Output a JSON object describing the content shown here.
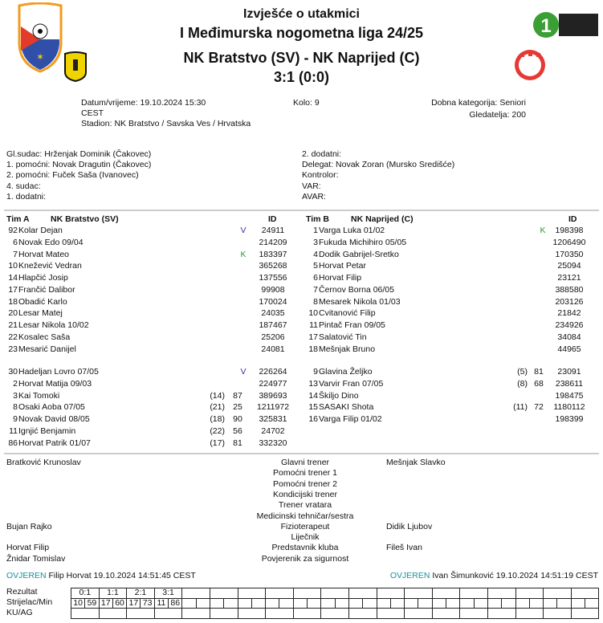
{
  "header": {
    "title": "Izvješće o utakmici",
    "league": "I Međimurska nogometna liga 24/25",
    "match": "NK Bratstvo (SV) - NK Naprijed (C)",
    "score": "3:1 (0:0)",
    "logos": {
      "federation": "Međimurski nogometni savez 1959",
      "league": "1 Međimurska nogometna liga",
      "home": "NK Bratstvo",
      "away": "NK Naprijed"
    }
  },
  "info": {
    "datetime": "Datum/vrijeme: 19.10.2024 15:30",
    "timezone": "CEST",
    "stadium": "Stadion: NK Bratstvo / Savska Ves / Hrvatska",
    "round": "Kolo: 9",
    "category": "Dobna kategorija: Seniori",
    "attendance": "Gledatelja: 200"
  },
  "officials": {
    "left": [
      "Gl.sudac: Hrženjak Dominik (Čakovec)",
      "1. pomoćni: Novak Dragutin (Čakovec)",
      "2. pomoćni: Fuček Saša (Ivanovec)",
      "4. sudac:",
      "1. dodatni:"
    ],
    "right": [
      "2. dodatni:",
      "Delegat: Novak Zoran (Mursko Središće)",
      "Kontrolor:",
      "VAR:",
      "AVAR:"
    ]
  },
  "teamA": {
    "label": "Tim A",
    "name": "NK Bratstvo (SV)",
    "id_header": "ID",
    "starters": [
      {
        "no": "92",
        "name": "Kolar Dejan",
        "mark": "V",
        "id": "24911"
      },
      {
        "no": "6",
        "name": "Novak Edo 09/04",
        "id": "214209"
      },
      {
        "no": "7",
        "name": "Horvat Mateo",
        "mark": "K",
        "id": "183397"
      },
      {
        "no": "10",
        "name": "Knežević Vedran",
        "id": "365268"
      },
      {
        "no": "14",
        "name": "Hlapčić Josip",
        "id": "137556"
      },
      {
        "no": "17",
        "name": "Frančić Dalibor",
        "id": "99908"
      },
      {
        "no": "18",
        "name": "Obadić Karlo",
        "id": "170024"
      },
      {
        "no": "20",
        "name": "Lesar Matej",
        "id": "24035"
      },
      {
        "no": "21",
        "name": "Lesar Nikola 10/02",
        "id": "187467"
      },
      {
        "no": "22",
        "name": "Kosalec Saša",
        "id": "25206"
      },
      {
        "no": "23",
        "name": "Mesarić Danijel",
        "id": "24081"
      }
    ],
    "subs": [
      {
        "no": "30",
        "name": "Hadeljan Lovro 07/05",
        "mark": "V",
        "id": "226264"
      },
      {
        "no": "2",
        "name": "Horvat Matija 09/03",
        "id": "224977"
      },
      {
        "no": "3",
        "name": "Kai Tomoki",
        "replaced": "(14)",
        "minute": "87",
        "id": "389693"
      },
      {
        "no": "8",
        "name": "Osaki Aoba 07/05",
        "replaced": "(21)",
        "minute": "25",
        "id": "1211972"
      },
      {
        "no": "9",
        "name": "Novak David 08/05",
        "replaced": "(18)",
        "minute": "90",
        "id": "325831"
      },
      {
        "no": "11",
        "name": "Ignjić Benjamin",
        "replaced": "(22)",
        "minute": "56",
        "id": "24702"
      },
      {
        "no": "86",
        "name": "Horvat Patrik 01/07",
        "replaced": "(17)",
        "minute": "81",
        "id": "332320"
      }
    ]
  },
  "teamB": {
    "label": "Tim B",
    "name": "NK Naprijed (C)",
    "id_header": "ID",
    "starters": [
      {
        "no": "1",
        "name": "Varga Luka 01/02",
        "mark": "K",
        "id": "198398"
      },
      {
        "no": "3",
        "name": "Fukuda Michihiro 05/05",
        "id": "1206490"
      },
      {
        "no": "4",
        "name": "Dodik Gabrijel-Sretko",
        "id": "170350"
      },
      {
        "no": "5",
        "name": "Horvat Petar",
        "id": "25094"
      },
      {
        "no": "6",
        "name": "Horvat Filip",
        "id": "23121"
      },
      {
        "no": "7",
        "name": "Černov Borna 06/05",
        "id": "388580"
      },
      {
        "no": "8",
        "name": "Mesarek Nikola 01/03",
        "id": "203126"
      },
      {
        "no": "10",
        "name": "Cvitanović Filip",
        "id": "21842"
      },
      {
        "no": "11",
        "name": "Pintač Fran 09/05",
        "id": "234926"
      },
      {
        "no": "17",
        "name": "Salatović Tin",
        "id": "34084"
      },
      {
        "no": "18",
        "name": "Mešnjak Bruno",
        "id": "44965"
      }
    ],
    "subs": [
      {
        "no": "9",
        "name": "Glavina Željko",
        "replaced": "(5)",
        "minute": "81",
        "id": "23091"
      },
      {
        "no": "13",
        "name": "Varvir Fran 07/05",
        "replaced": "(8)",
        "minute": "68",
        "id": "238611"
      },
      {
        "no": "14",
        "name": "Škiljo Dino",
        "id": "198475"
      },
      {
        "no": "15",
        "name": "SASAKI Shota",
        "replaced": "(11)",
        "minute": "72",
        "id": "1180112"
      },
      {
        "no": "16",
        "name": "Varga Filip 01/02",
        "id": "198399"
      }
    ]
  },
  "staff": [
    {
      "left": "Bratković Krunoslav",
      "role": "Glavni trener",
      "right": "Mešnjak Slavko"
    },
    {
      "left": "",
      "role": "Pomoćni trener 1",
      "right": ""
    },
    {
      "left": "",
      "role": "Pomoćni trener 2",
      "right": ""
    },
    {
      "left": "",
      "role": "Kondicijski trener",
      "right": ""
    },
    {
      "left": "",
      "role": "Trener vratara",
      "right": ""
    },
    {
      "left": "",
      "role": "Medicinski tehničar/sestra",
      "right": ""
    },
    {
      "left": "Bujan Rajko",
      "role": "Fizioterapeut",
      "right": "Didik Ljubov"
    },
    {
      "left": "",
      "role": "Liječnik",
      "right": ""
    },
    {
      "left": "Horvat Filip",
      "role": "Predstavnik kluba",
      "right": "Fileš Ivan"
    },
    {
      "left": "Žnidar Tomislav",
      "role": "Povjerenik za sigurnost",
      "right": ""
    }
  ],
  "verification": {
    "left": {
      "status": "OVJEREN",
      "text": "Filip Horvat 19.10.2024 14:51:45 CEST"
    },
    "right": {
      "status": "OVJEREN",
      "text": "Ivan Šimunković 19.10.2024 14:51:19 CEST"
    }
  },
  "goals": {
    "labels": [
      "Rezultat",
      "Strijelac/Min",
      "KU/AG"
    ],
    "entries": [
      {
        "result": "0:1",
        "scorer": "10",
        "minute": "59"
      },
      {
        "result": "1:1",
        "scorer": "17",
        "minute": "60"
      },
      {
        "result": "2:1",
        "scorer": "17",
        "minute": "73"
      },
      {
        "result": "3:1",
        "scorer": "11",
        "minute": "86"
      }
    ]
  },
  "colors": {
    "verified": "#1a8fa0",
    "captain": "#2a9a2a",
    "goalkeeper": "#3333aa"
  }
}
